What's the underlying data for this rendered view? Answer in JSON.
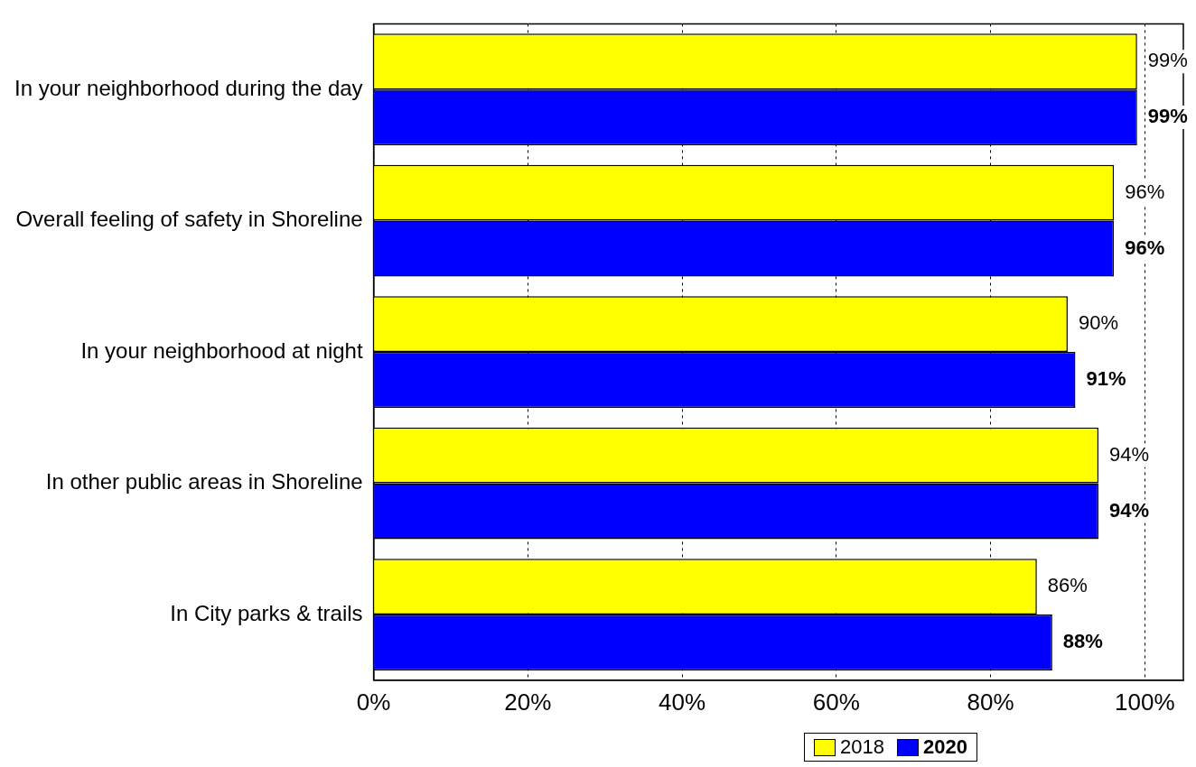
{
  "chart_data": {
    "type": "bar",
    "orientation": "horizontal",
    "categories": [
      "In your neighborhood during the day",
      "Overall feeling of safety in Shoreline",
      "In your neighborhood at night",
      "In other public areas in Shoreline",
      "In City parks & trails"
    ],
    "series": [
      {
        "name": "2018",
        "color": "#ffff00",
        "values": [
          99,
          96,
          90,
          94,
          86
        ],
        "value_labels": [
          "99%",
          "96%",
          "90%",
          "94%",
          "86%"
        ]
      },
      {
        "name": "2020",
        "color": "#0000ff",
        "values": [
          99,
          96,
          91,
          94,
          88
        ],
        "value_labels": [
          "99%",
          "96%",
          "91%",
          "94%",
          "88%"
        ]
      }
    ],
    "xlim": [
      0,
      105
    ],
    "xticks": [
      {
        "value": 0,
        "label": "0%"
      },
      {
        "value": 20,
        "label": "20%"
      },
      {
        "value": 40,
        "label": "40%"
      },
      {
        "value": 60,
        "label": "60%"
      },
      {
        "value": 80,
        "label": "80%"
      },
      {
        "value": 100,
        "label": "100%"
      }
    ],
    "grid": "x",
    "legend": "bottom right"
  }
}
